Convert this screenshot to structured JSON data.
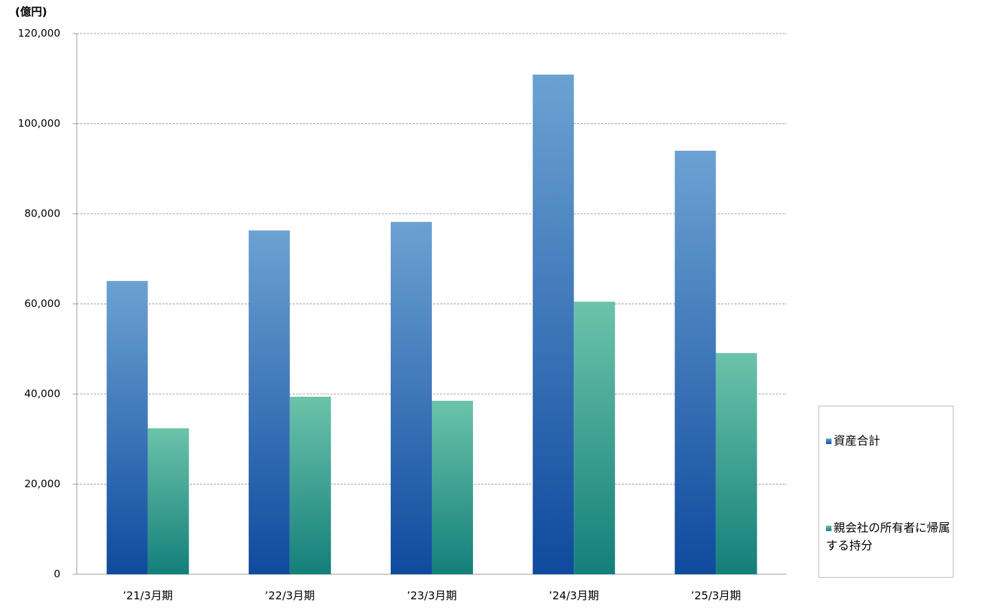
{
  "chart_data": {
    "type": "bar",
    "unit_label": "(億円)",
    "categories": [
      "’21/3月期",
      "’22/3月期",
      "’23/3月期",
      "’24/3月期",
      "’25/3月期"
    ],
    "series": [
      {
        "name": "資産合計",
        "color": "#6ca2d2",
        "color_bottom": "#0f4a9e",
        "values": [
          65100,
          76300,
          78200,
          110900,
          94000
        ]
      },
      {
        "name": "親会社の所有者に帰属する持分",
        "color": "#6cc3aa",
        "color_bottom": "#137f7a",
        "values": [
          32400,
          39400,
          38500,
          60500,
          49100
        ]
      }
    ],
    "ylim": [
      0,
      120000
    ],
    "yticks": [
      0,
      {
        "value": 20000,
        "label": "20,000"
      },
      {
        "value": 40000,
        "label": "40,000"
      },
      {
        "value": 60000,
        "label": "60,000"
      },
      {
        "value": 80000,
        "label": "80,000"
      },
      {
        "value": 100000,
        "label": "100,000"
      },
      {
        "value": 120000,
        "label": "120,000"
      }
    ],
    "grid": true,
    "legend": "right"
  }
}
